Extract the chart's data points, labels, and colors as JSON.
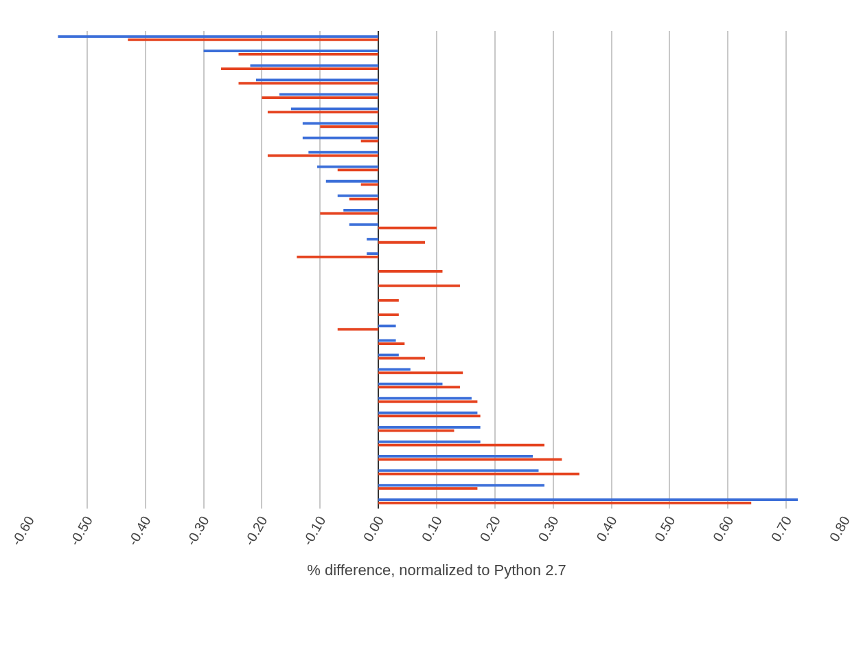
{
  "chart_data": {
    "type": "bar",
    "orientation": "horizontal",
    "xlabel": "% difference, normalized to Python 2.7",
    "categories": [
      null,
      null,
      null,
      null,
      null,
      null,
      null,
      null,
      null,
      null,
      null,
      null,
      null,
      null,
      null,
      null,
      null,
      null,
      null,
      null,
      null,
      null,
      null,
      null,
      null,
      null,
      null,
      null,
      null,
      null,
      null,
      null,
      null
    ],
    "series": [
      {
        "color": "#3c6fd9",
        "values": [
          -0.55,
          -0.3,
          -0.22,
          -0.21,
          -0.17,
          -0.15,
          -0.13,
          -0.13,
          -0.12,
          -0.105,
          -0.09,
          -0.07,
          -0.06,
          -0.05,
          -0.02,
          -0.02,
          0,
          0,
          0,
          0,
          0.03,
          0.03,
          0.035,
          0.055,
          0.11,
          0.16,
          0.17,
          0.175,
          0.175,
          0.265,
          0.275,
          0.285,
          0.72
        ]
      },
      {
        "color": "#e5431f",
        "values": [
          -0.43,
          -0.24,
          -0.27,
          -0.24,
          -0.2,
          -0.19,
          -0.1,
          -0.03,
          -0.19,
          -0.07,
          -0.03,
          -0.05,
          -0.1,
          0.1,
          0.08,
          -0.14,
          0.11,
          0.14,
          0.035,
          0.035,
          -0.07,
          0.045,
          0.08,
          0.145,
          0.14,
          0.17,
          0.175,
          0.13,
          0.285,
          0.315,
          0.345,
          0.17,
          0.64
        ]
      }
    ],
    "xlim": [
      -0.6,
      0.8
    ],
    "xticks": [
      {
        "value": -0.6,
        "label": "-0.60"
      },
      {
        "value": -0.5,
        "label": "-0.50"
      },
      {
        "value": -0.4,
        "label": "-0.40"
      },
      {
        "value": -0.3,
        "label": "-0.30"
      },
      {
        "value": -0.2,
        "label": "-0.20"
      },
      {
        "value": -0.1,
        "label": "-0.10"
      },
      {
        "value": 0,
        "label": "0.00"
      },
      {
        "value": 0.1,
        "label": "0.10"
      },
      {
        "value": 0.2,
        "label": "0.20"
      },
      {
        "value": 0.3,
        "label": "0.30"
      },
      {
        "value": 0.4,
        "label": "0.40"
      },
      {
        "value": 0.5,
        "label": "0.50"
      },
      {
        "value": 0.6,
        "label": "0.60"
      },
      {
        "value": 0.7,
        "label": "0.70"
      },
      {
        "value": 0.8,
        "label": "0.80"
      }
    ],
    "grid": "x",
    "tick_labels": "x"
  }
}
